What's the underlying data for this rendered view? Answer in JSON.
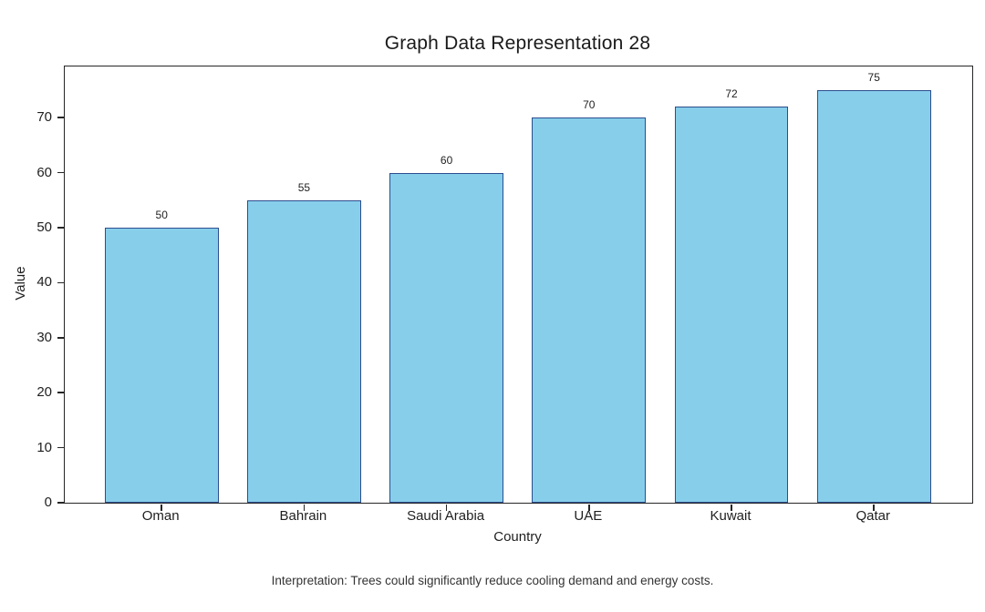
{
  "figure": {
    "caption": "Interpretation: Trees could significantly reduce cooling demand and energy costs."
  },
  "chart_data": {
    "type": "bar",
    "title": "Graph Data Representation 28",
    "categories": [
      "Oman",
      "Bahrain",
      "Saudi Arabia",
      "UAE",
      "Kuwait",
      "Qatar"
    ],
    "values": [
      50,
      55,
      60,
      70,
      72,
      75
    ],
    "bar_value_labels": [
      "50",
      "55",
      "60",
      "70",
      "72",
      "75"
    ],
    "xlabel": "Country",
    "ylabel": "Value",
    "yticks": [
      0,
      10,
      20,
      30,
      40,
      50,
      60,
      70
    ],
    "ylim": [
      0,
      79.3
    ],
    "xlim": [
      -0.68,
      5.69
    ],
    "bar_width": 0.8,
    "grid": false,
    "legend": false,
    "colors": {
      "bar_fill": "#87CEEB",
      "bar_edge": "#2D4D8E",
      "axis": "#262626",
      "text": "#1F1F1F",
      "caption": "#333333",
      "background": "#FFFFFF"
    }
  }
}
